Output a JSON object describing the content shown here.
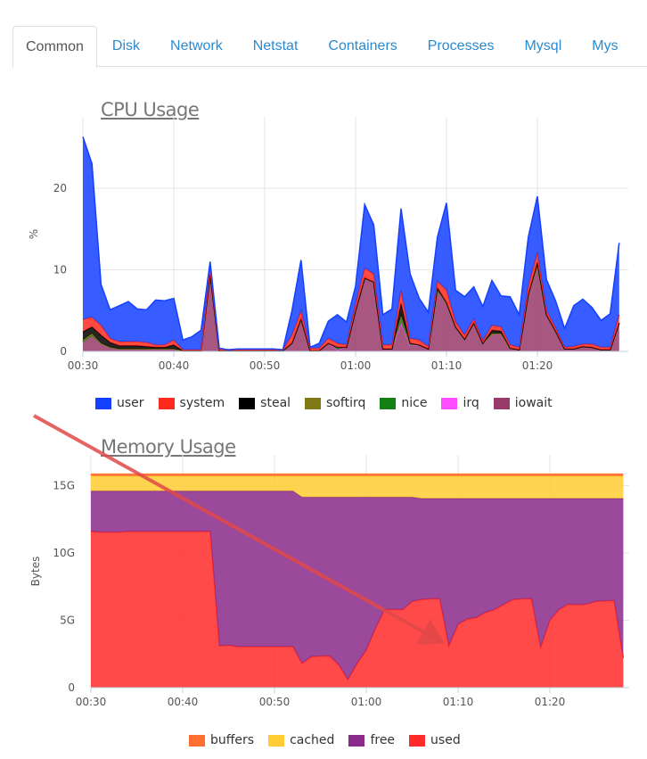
{
  "tabs": [
    {
      "label": "Common",
      "active": true
    },
    {
      "label": "Disk"
    },
    {
      "label": "Network"
    },
    {
      "label": "Netstat"
    },
    {
      "label": "Containers"
    },
    {
      "label": "Processes"
    },
    {
      "label": "Mysql"
    },
    {
      "label": "Mys"
    }
  ],
  "colors": {
    "link": "#2a8ad0",
    "annotation_arrow": "#e04848"
  },
  "chart_data": [
    {
      "type": "area",
      "stacked": true,
      "title": "CPU Usage",
      "ylabel": "%",
      "xlabel": "",
      "x_start": "00:30",
      "x_step_minutes": 1,
      "xticks": [
        "00:30",
        "00:40",
        "00:50",
        "01:00",
        "01:10",
        "01:20"
      ],
      "yticks": [
        "0",
        "10",
        "20"
      ],
      "ylim": [
        0,
        26.5
      ],
      "grid": true,
      "legend_position": "bottom",
      "series": [
        {
          "name": "user",
          "color": "#1440ff",
          "values": [
            22.4,
            18.8,
            5,
            3.5,
            4.4,
            4.9,
            4,
            4,
            5.5,
            5.4,
            5.1,
            1.2,
            1.6,
            2.4,
            0.7,
            0.1,
            0,
            0.1,
            0.1,
            0.1,
            0.1,
            0.1,
            0,
            3,
            6.2,
            0.1,
            0.6,
            2.1,
            3.5,
            2.8,
            2.2,
            7.8,
            6,
            3.7,
            4.4,
            10,
            7.9,
            5.1,
            4.2,
            5.4,
            10.7,
            3.9,
            4.7,
            3.9,
            4.2,
            5.5,
            3.8,
            5.9,
            4,
            6,
            6.9,
            3.8,
            3.3,
            2.3,
            5,
            5.5,
            4.5,
            3.3,
            4.1,
            8.8
          ]
        },
        {
          "name": "system",
          "color": "#ff2a1f",
          "values": [
            1.5,
            1.2,
            1.2,
            0.5,
            0.5,
            0.5,
            0.5,
            0.5,
            0.3,
            0.3,
            0.6,
            0.1,
            0.1,
            0.1,
            0.8,
            0.2,
            0.1,
            0.1,
            0.1,
            0.1,
            0.1,
            0.1,
            0.1,
            1,
            1,
            0.3,
            0.3,
            0.6,
            0.5,
            0.3,
            0.8,
            1.2,
            1,
            0.5,
            0.5,
            1.6,
            0.6,
            0.6,
            0.3,
            0.8,
            1.5,
            0.6,
            0.5,
            0.5,
            0.3,
            0.6,
            0.5,
            0.4,
            0.3,
            1,
            1.2,
            0.5,
            0.4,
            0.2,
            0.3,
            0.3,
            0.4,
            0.3,
            0.3,
            1
          ]
        },
        {
          "name": "steal",
          "color": "#000000",
          "values": [
            1,
            0.8,
            1,
            0.6,
            0.4,
            0.4,
            0.4,
            0.3,
            0.2,
            0.2,
            0.5,
            0,
            0,
            0,
            0,
            0,
            0,
            0,
            0,
            0,
            0,
            0,
            0,
            0,
            0,
            0,
            0,
            0,
            0,
            0,
            0,
            0,
            0,
            0,
            0,
            1.5,
            0,
            0,
            0,
            0.3,
            0,
            0,
            0,
            0,
            0,
            0.4,
            0.3,
            0,
            0,
            0,
            0.4,
            0,
            0,
            0,
            0,
            0,
            0,
            0,
            0,
            0
          ]
        },
        {
          "name": "softirq",
          "color": "#7f7a16",
          "values": [
            0.2,
            0.2,
            0,
            0,
            0,
            0,
            0,
            0,
            0,
            0,
            0,
            0,
            0,
            0,
            0,
            0,
            0,
            0,
            0,
            0,
            0,
            0,
            0,
            0,
            0,
            0,
            0,
            0,
            0,
            0,
            0,
            0,
            0,
            0,
            0,
            0,
            0,
            0,
            0,
            0,
            0,
            0,
            0,
            0,
            0,
            0,
            0,
            0,
            0,
            0,
            0,
            0,
            0,
            0,
            0,
            0,
            0,
            0,
            0,
            0
          ]
        },
        {
          "name": "nice",
          "color": "#128012",
          "values": [
            0,
            0,
            0,
            0,
            0,
            0,
            0,
            0,
            0,
            0,
            0,
            0,
            0,
            0,
            0,
            0,
            0,
            0,
            0,
            0,
            0,
            0,
            0,
            0,
            0,
            0,
            0,
            0,
            0.3,
            0,
            0,
            0,
            0,
            0,
            0,
            0.9,
            0.3,
            0,
            0,
            0,
            0,
            0,
            0,
            0,
            0,
            0,
            0,
            0,
            0,
            0,
            0,
            0,
            0,
            0,
            0,
            0,
            0,
            0,
            0,
            0
          ]
        },
        {
          "name": "irq",
          "color": "#ff4cff",
          "values": [
            0,
            0,
            0,
            0,
            0,
            0,
            0,
            0,
            0,
            0,
            0,
            0,
            0,
            0,
            0,
            0,
            0,
            0,
            0,
            0,
            0,
            0,
            0,
            0,
            0,
            0,
            0,
            0,
            0,
            0,
            0,
            0,
            0,
            0,
            0,
            0,
            0,
            0,
            0,
            0,
            0,
            0,
            0,
            0,
            0,
            0,
            0,
            0,
            0,
            0,
            0,
            0,
            0,
            0,
            0,
            0,
            0,
            0,
            0,
            0
          ]
        },
        {
          "name": "iowait",
          "color": "#983a6a",
          "values": [
            1.2,
            2,
            1,
            0.5,
            0.3,
            0.3,
            0.3,
            0.3,
            0.3,
            0.3,
            0.3,
            0.1,
            0.1,
            0.1,
            9.5,
            0.1,
            0.1,
            0.1,
            0.1,
            0.1,
            0.1,
            0.1,
            0.1,
            1,
            4,
            0.1,
            0.1,
            1,
            0.2,
            0.5,
            5,
            9,
            8.5,
            0.3,
            0.3,
            3.5,
            0.7,
            0.8,
            0.3,
            7.5,
            6,
            3,
            1.5,
            3.5,
            1,
            2.2,
            2.2,
            0.4,
            0.2,
            7,
            10.5,
            4.5,
            2.5,
            0.3,
            0.3,
            0.6,
            0.5,
            0.2,
            0.2,
            3.5
          ]
        }
      ]
    },
    {
      "type": "area",
      "stacked": true,
      "title": "Memory Usage",
      "ylabel": "Bytes",
      "xlabel": "",
      "x_start": "00:30",
      "x_step_minutes": 1,
      "xticks": [
        "00:30",
        "00:40",
        "00:50",
        "01:00",
        "01:10",
        "01:20"
      ],
      "yticks": [
        "0",
        "5G",
        "10G",
        "15G"
      ],
      "ylim": [
        0,
        16.5
      ],
      "y_unit": "G",
      "grid": true,
      "legend_position": "bottom",
      "series": [
        {
          "name": "buffers",
          "color": "#ff7030",
          "values": [
            0.15,
            0.15,
            0.15,
            0.15,
            0.15,
            0.15,
            0.15,
            0.15,
            0.15,
            0.15,
            0.15,
            0.15,
            0.15,
            0.15,
            0.15,
            0.15,
            0.15,
            0.15,
            0.15,
            0.15,
            0.15,
            0.15,
            0.15,
            0.15,
            0.15,
            0.15,
            0.15,
            0.15,
            0.15,
            0.15,
            0.15,
            0.15,
            0.15,
            0.15,
            0.15,
            0.15,
            0.15,
            0.15,
            0.15,
            0.15,
            0.15,
            0.15,
            0.15,
            0.15,
            0.15,
            0.15,
            0.15,
            0.15,
            0.15,
            0.15,
            0.15,
            0.15,
            0.15,
            0.15,
            0.15,
            0.15,
            0.15,
            0.15,
            0.15
          ]
        },
        {
          "name": "cached",
          "color": "#ffcc33",
          "values": [
            1.1,
            1.1,
            1.1,
            1.1,
            1.1,
            1.1,
            1.1,
            1.1,
            1.1,
            1.1,
            1.1,
            1.1,
            1.1,
            1.1,
            1.1,
            1.1,
            1.1,
            1.1,
            1.1,
            1.1,
            1.1,
            1.1,
            1.1,
            1.55,
            1.55,
            1.55,
            1.55,
            1.55,
            1.55,
            1.55,
            1.55,
            1.55,
            1.55,
            1.55,
            1.55,
            1.55,
            1.65,
            1.65,
            1.65,
            1.65,
            1.65,
            1.65,
            1.65,
            1.65,
            1.65,
            1.65,
            1.65,
            1.65,
            1.65,
            1.65,
            1.65,
            1.65,
            1.65,
            1.65,
            1.65,
            1.65,
            1.65,
            1.65,
            1.65
          ]
        },
        {
          "name": "free",
          "color": "#8a2a8a",
          "values": [
            3.0,
            3.05,
            3.05,
            3.05,
            3.0,
            3.0,
            3.0,
            3.0,
            3.0,
            3.0,
            3.0,
            3.0,
            3.0,
            3.0,
            11.5,
            11.45,
            11.55,
            11.55,
            11.55,
            11.55,
            11.55,
            11.55,
            11.55,
            12.35,
            11.85,
            11.8,
            11.8,
            12.45,
            13.55,
            12.35,
            11.35,
            9.75,
            8.35,
            8.35,
            8.35,
            7.75,
            7.5,
            7.45,
            7.45,
            10.95,
            9.35,
            8.95,
            8.85,
            8.45,
            8.25,
            7.85,
            7.5,
            7.45,
            7.45,
            11.05,
            9.05,
            8.25,
            7.85,
            7.9,
            7.85,
            7.65,
            7.6,
            7.6,
            11.85
          ]
        },
        {
          "name": "used",
          "color": "#ff2a2a",
          "values": [
            11.6,
            11.55,
            11.55,
            11.55,
            11.6,
            11.6,
            11.6,
            11.6,
            11.6,
            11.6,
            11.6,
            11.6,
            11.6,
            11.6,
            3.1,
            3.15,
            3.05,
            3.05,
            3.05,
            3.05,
            3.05,
            3.05,
            3.05,
            1.8,
            2.3,
            2.35,
            2.35,
            1.7,
            0.6,
            1.8,
            2.8,
            4.4,
            5.8,
            5.8,
            5.8,
            6.4,
            6.55,
            6.6,
            6.6,
            3.1,
            4.7,
            5.1,
            5.2,
            5.6,
            5.8,
            6.2,
            6.55,
            6.6,
            6.6,
            3.0,
            5.0,
            5.8,
            6.2,
            6.15,
            6.2,
            6.4,
            6.45,
            6.45,
            2.2
          ]
        }
      ]
    }
  ]
}
